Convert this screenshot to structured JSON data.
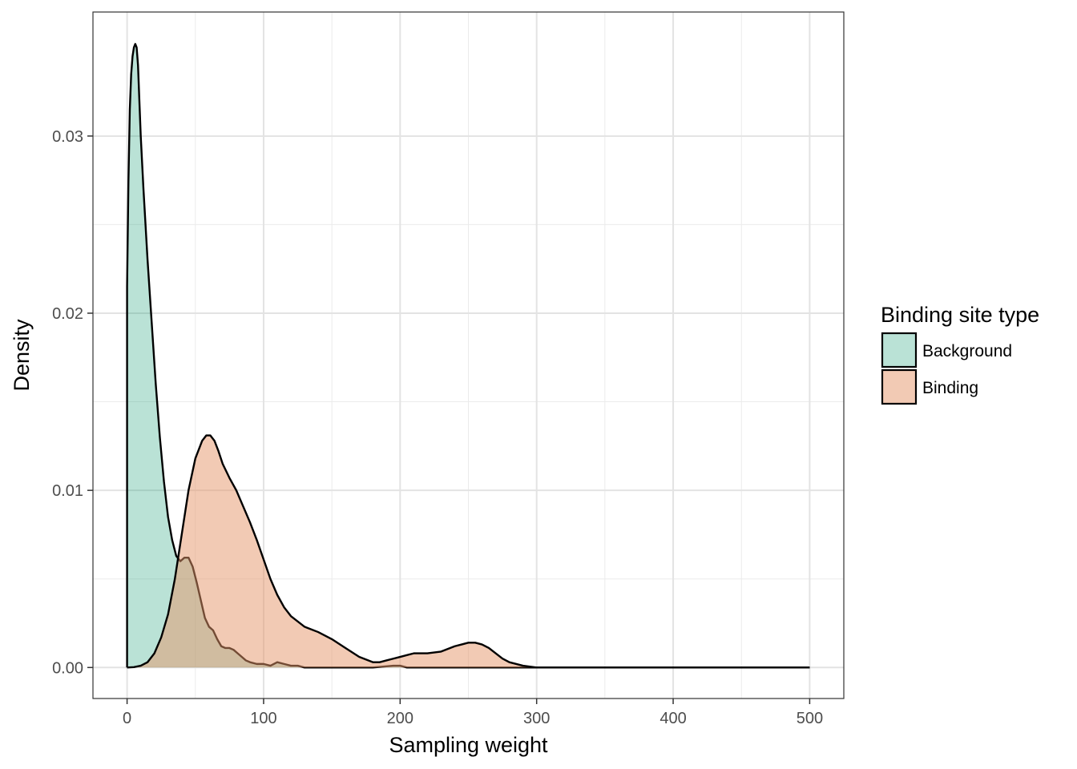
{
  "chart_data": {
    "type": "area",
    "title": "",
    "xlabel": "Sampling weight",
    "ylabel": "Density",
    "xlim": [
      -25,
      525
    ],
    "ylim": [
      -0.00175,
      0.037
    ],
    "x_ticks": [
      0,
      100,
      200,
      300,
      400,
      500
    ],
    "x_tick_labels": [
      "0",
      "100",
      "200",
      "300",
      "400",
      "500"
    ],
    "y_ticks": [
      0.0,
      0.01,
      0.02,
      0.03
    ],
    "y_tick_labels": [
      "0.00",
      "0.01",
      "0.02",
      "0.03"
    ],
    "grid": true,
    "legend": {
      "title": "Binding site type",
      "position": "right"
    },
    "series": [
      {
        "name": "Background",
        "color": "#1b9e77",
        "x": [
          0,
          0,
          1,
          2,
          3,
          4,
          5,
          6,
          7,
          8,
          9,
          10,
          12,
          15,
          18,
          21,
          24,
          27,
          30,
          33,
          36,
          39,
          42,
          45,
          48,
          51,
          54,
          57,
          60,
          63,
          66,
          69,
          72,
          75,
          78,
          81,
          84,
          87,
          90,
          95,
          100,
          105,
          110,
          115,
          120,
          125,
          130,
          140,
          160,
          180,
          195,
          200,
          205,
          220,
          250,
          300,
          400,
          500
        ],
        "y": [
          0,
          0.0215,
          0.0275,
          0.0315,
          0.0335,
          0.0345,
          0.035,
          0.0352,
          0.035,
          0.034,
          0.032,
          0.03,
          0.027,
          0.023,
          0.0195,
          0.016,
          0.013,
          0.0105,
          0.0085,
          0.0072,
          0.0063,
          0.006,
          0.0062,
          0.0062,
          0.0057,
          0.0048,
          0.0038,
          0.0028,
          0.0023,
          0.0021,
          0.0016,
          0.0012,
          0.0011,
          0.0011,
          0.001,
          0.0008,
          0.0006,
          0.0004,
          0.0003,
          0.0002,
          0.0002,
          0.0001,
          0.0003,
          0.0002,
          0.0001,
          0.0001,
          0.0,
          0.0,
          0.0,
          0.0,
          0.0001,
          0.0001,
          0.0,
          0.0,
          0.0,
          0.0,
          0.0,
          0.0
        ]
      },
      {
        "name": "Binding",
        "color": "#e5956a",
        "x": [
          0,
          5,
          10,
          15,
          20,
          25,
          30,
          35,
          40,
          45,
          50,
          55,
          58,
          61,
          64,
          67,
          70,
          75,
          80,
          85,
          90,
          95,
          100,
          105,
          110,
          115,
          120,
          130,
          140,
          150,
          160,
          170,
          180,
          185,
          190,
          195,
          200,
          210,
          220,
          230,
          240,
          245,
          250,
          255,
          260,
          265,
          270,
          275,
          280,
          290,
          300,
          350,
          400,
          450,
          500
        ],
        "y": [
          0,
          2e-05,
          0.0001,
          0.0003,
          0.0008,
          0.0017,
          0.003,
          0.005,
          0.0075,
          0.01,
          0.0118,
          0.0128,
          0.0131,
          0.0131,
          0.0128,
          0.0122,
          0.0115,
          0.0107,
          0.01,
          0.0091,
          0.0082,
          0.0072,
          0.0061,
          0.005,
          0.0041,
          0.0034,
          0.0029,
          0.0023,
          0.002,
          0.0016,
          0.0011,
          0.0006,
          0.0003,
          0.0003,
          0.0004,
          0.0005,
          0.0006,
          0.0008,
          0.0008,
          0.0009,
          0.0012,
          0.0013,
          0.0014,
          0.0014,
          0.0013,
          0.0011,
          0.0008,
          0.0005,
          0.0003,
          0.0001,
          0.0,
          0.0,
          0.0,
          0.0,
          0.0
        ]
      }
    ]
  }
}
